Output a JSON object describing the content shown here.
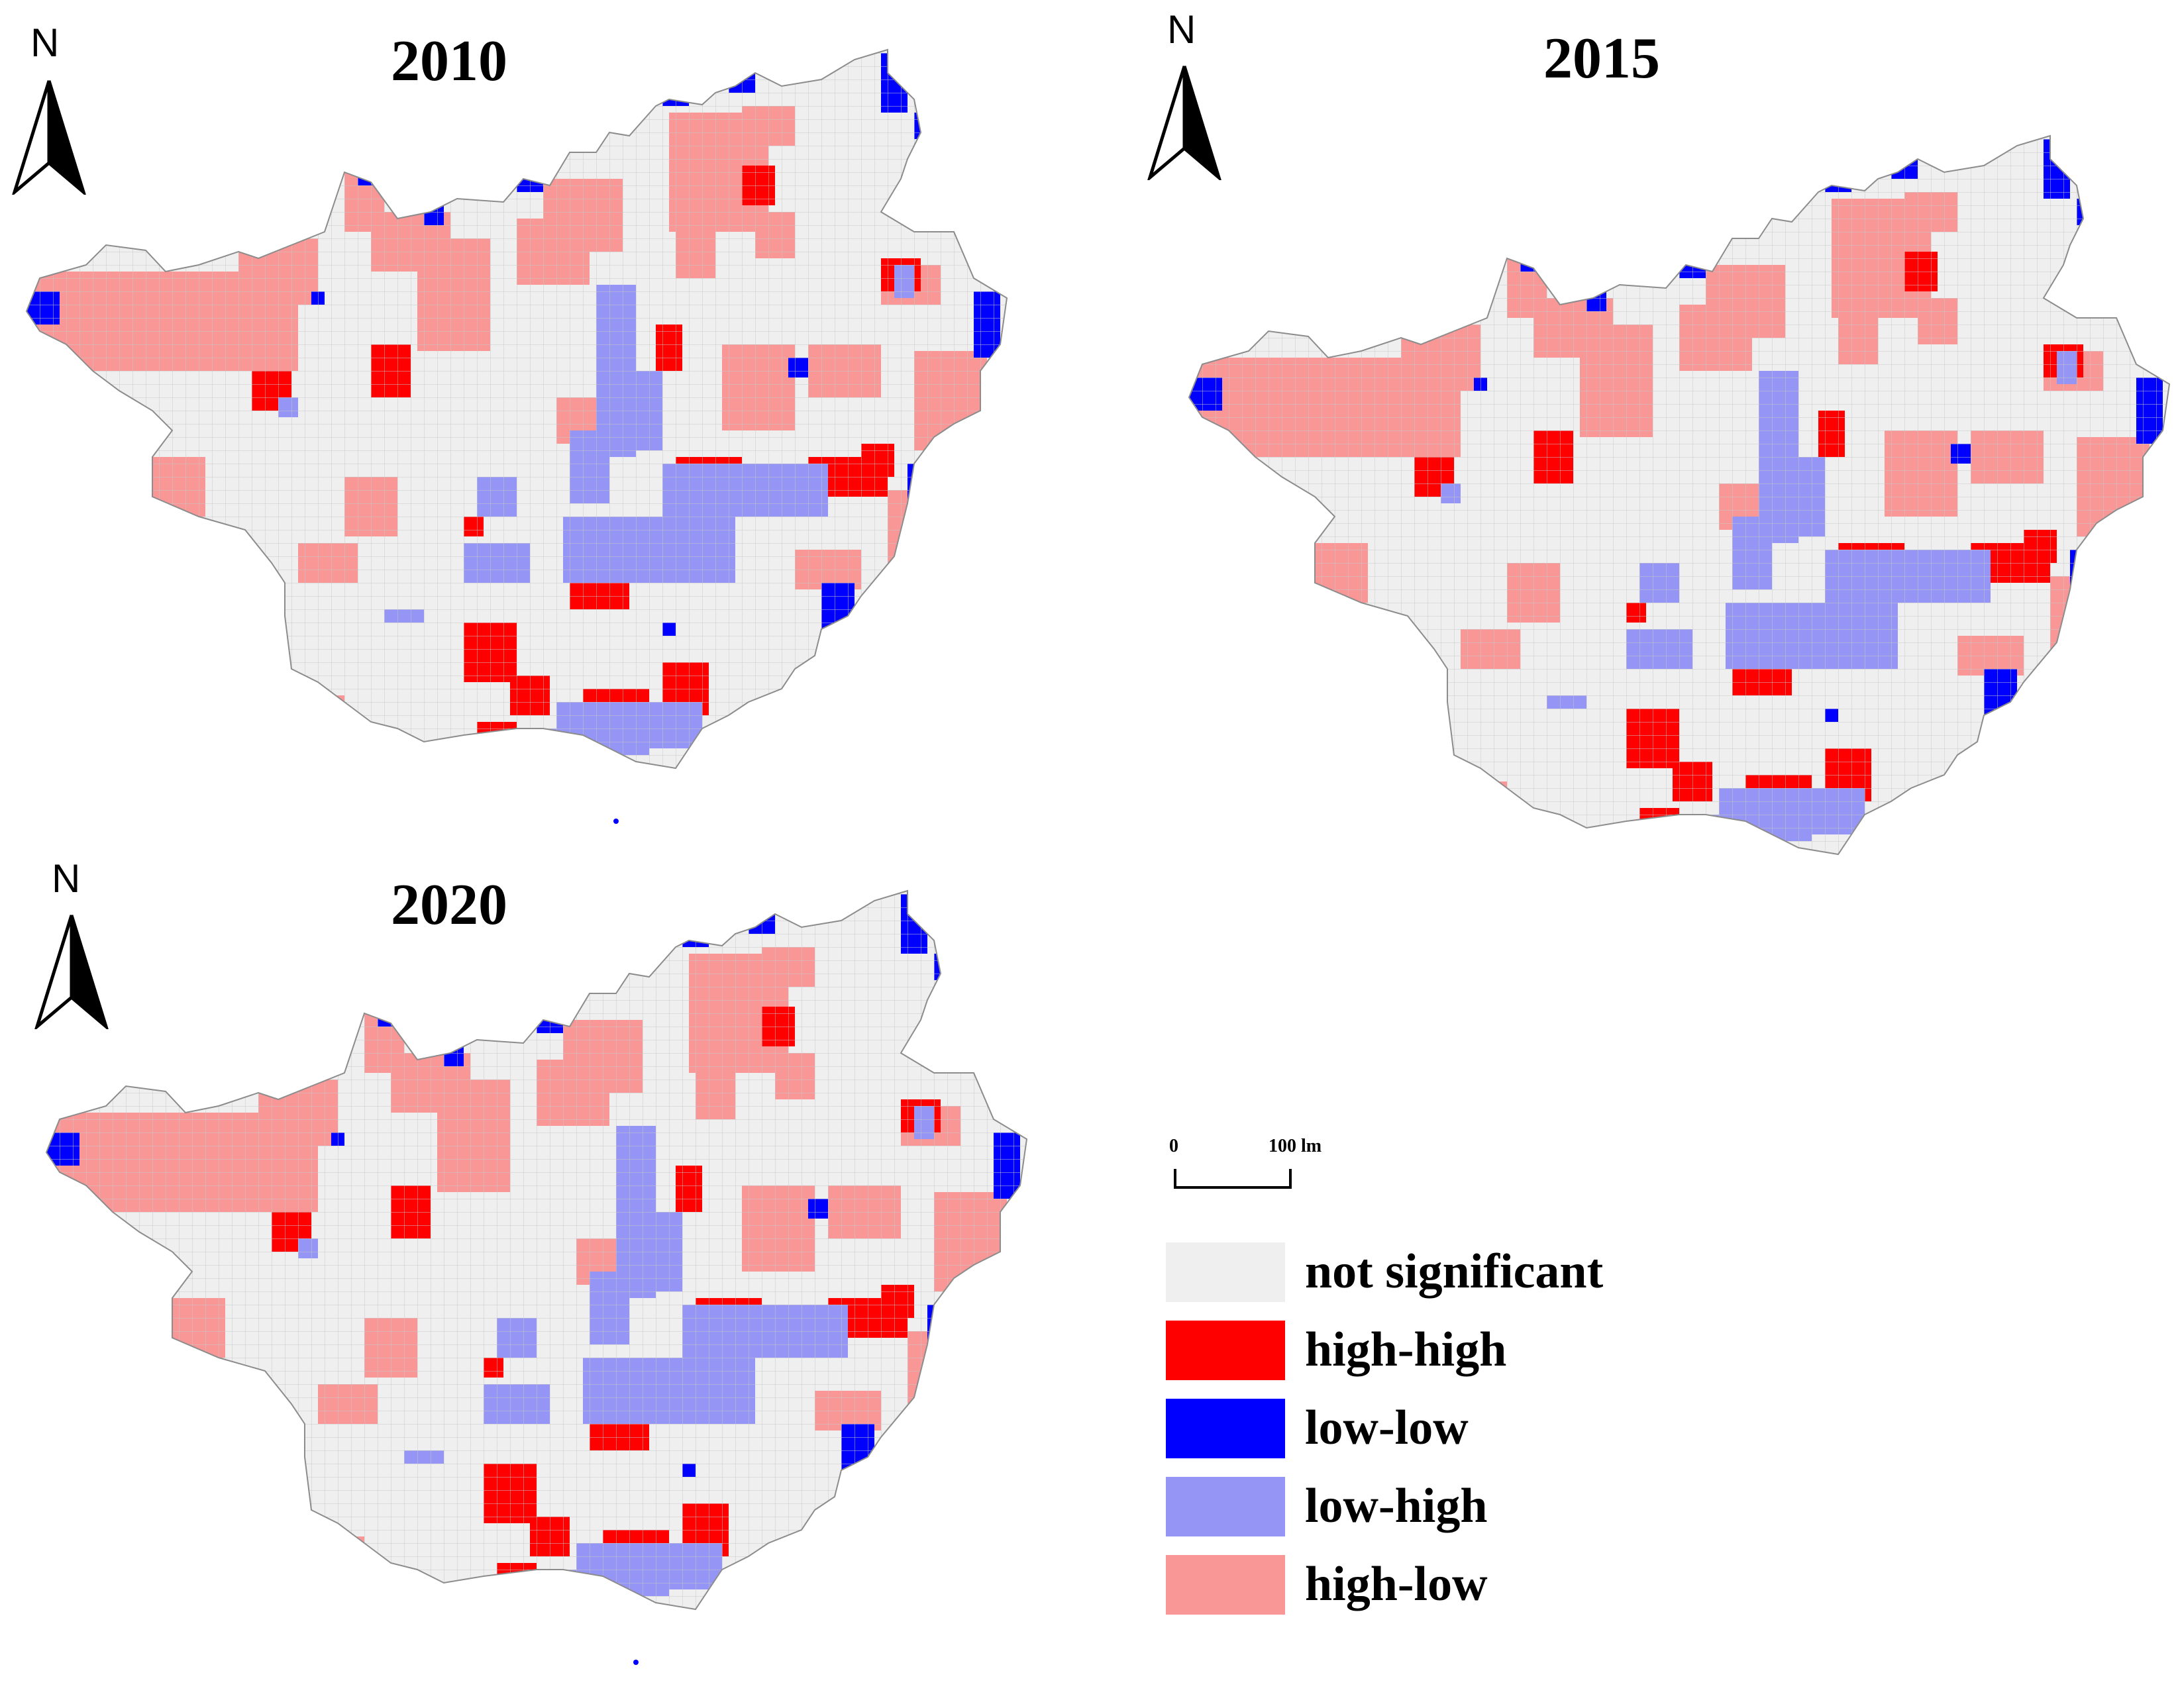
{
  "maps": [
    {
      "year": "2010",
      "north": "N"
    },
    {
      "year": "2015",
      "north": "N"
    },
    {
      "year": "2020",
      "north": "N"
    }
  ],
  "scale_bar": {
    "start": "0",
    "end": "100 lm"
  },
  "legend": [
    {
      "label": "not significant",
      "color": "#efefef"
    },
    {
      "label": "high-high",
      "color": "#ff0000"
    },
    {
      "label": "low-low",
      "color": "#0000ff"
    },
    {
      "label": "low-high",
      "color": "#9595f5"
    },
    {
      "label": "high-low",
      "color": "#f99696"
    }
  ],
  "colors": {
    "grid_line": "#c8c8c8",
    "outline": "#8c8c8c"
  }
}
